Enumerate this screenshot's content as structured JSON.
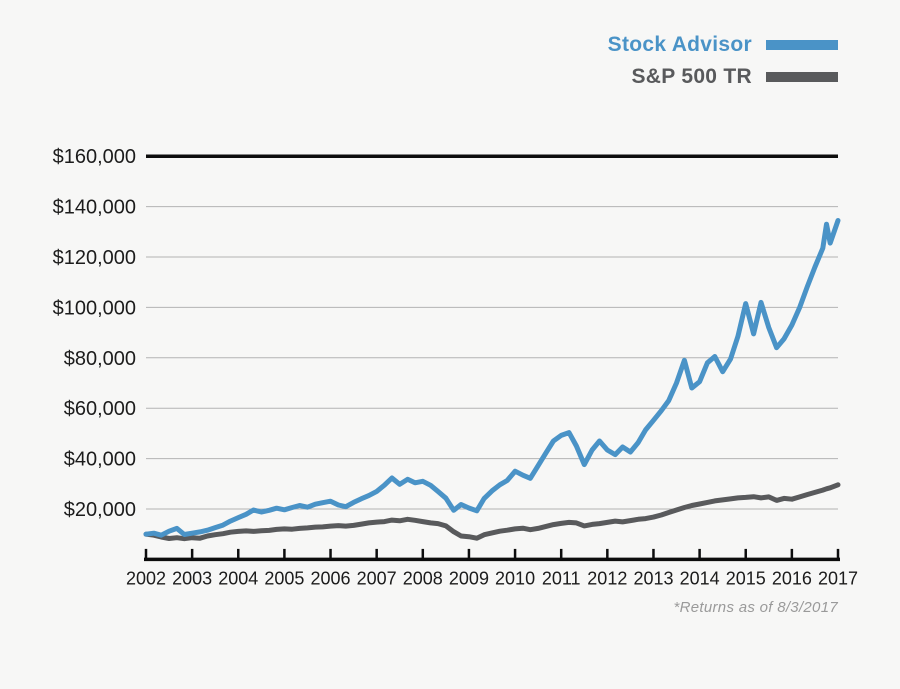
{
  "legend": {
    "items": [
      {
        "label": "Stock Advisor",
        "color": "#4a93c7"
      },
      {
        "label": "S&P 500 TR",
        "color": "#595a5c"
      }
    ]
  },
  "footnote": "*Returns as of 8/3/2017",
  "colors": {
    "background": "#f7f7f6",
    "gridline": "#b3b3b3",
    "axis": "#0d0d0d",
    "tick_label": "#1c1c1c",
    "stock_advisor": "#4a93c7",
    "sp500": "#595a5c"
  },
  "chart_data": {
    "type": "line",
    "title": "",
    "xlabel": "",
    "ylabel": "",
    "grid": true,
    "legend_position": "top-right",
    "xlim": [
      2002,
      2017
    ],
    "ylim": [
      0,
      160000
    ],
    "x_ticks": [
      2002,
      2003,
      2004,
      2005,
      2006,
      2007,
      2008,
      2009,
      2010,
      2011,
      2012,
      2013,
      2014,
      2015,
      2016,
      2017
    ],
    "y_ticks": [
      20000,
      40000,
      60000,
      80000,
      100000,
      120000,
      140000,
      160000
    ],
    "y_tick_labels": [
      "$20,000",
      "$40,000",
      "$60,000",
      "$80,000",
      "$100,000",
      "$120,000",
      "$140,000",
      "$160,000"
    ],
    "x": [
      2002,
      2002.17,
      2002.33,
      2002.5,
      2002.67,
      2002.83,
      2003,
      2003.17,
      2003.33,
      2003.5,
      2003.67,
      2003.83,
      2004,
      2004.17,
      2004.33,
      2004.5,
      2004.67,
      2004.83,
      2005,
      2005.17,
      2005.33,
      2005.5,
      2005.67,
      2005.83,
      2006,
      2006.17,
      2006.33,
      2006.5,
      2006.67,
      2006.83,
      2007,
      2007.17,
      2007.33,
      2007.5,
      2007.67,
      2007.83,
      2008,
      2008.17,
      2008.33,
      2008.5,
      2008.67,
      2008.83,
      2009,
      2009.17,
      2009.33,
      2009.5,
      2009.67,
      2009.83,
      2010,
      2010.17,
      2010.33,
      2010.5,
      2010.67,
      2010.83,
      2011,
      2011.17,
      2011.33,
      2011.5,
      2011.67,
      2011.83,
      2012,
      2012.17,
      2012.33,
      2012.5,
      2012.67,
      2012.83,
      2013,
      2013.17,
      2013.33,
      2013.5,
      2013.67,
      2013.83,
      2014,
      2014.17,
      2014.33,
      2014.5,
      2014.67,
      2014.83,
      2015,
      2015.17,
      2015.33,
      2015.5,
      2015.67,
      2015.83,
      2016,
      2016.17,
      2016.33,
      2016.5,
      2016.67,
      2016.75,
      2016.83,
      2017
    ],
    "series": [
      {
        "name": "Stock Advisor",
        "color": "#4a93c7",
        "values": [
          10000,
          10400,
          9600,
          11200,
          12300,
          9900,
          10400,
          10900,
          11600,
          12600,
          13600,
          15200,
          16600,
          17900,
          19600,
          18800,
          19500,
          20300,
          19700,
          20600,
          21400,
          20700,
          21900,
          22500,
          23100,
          21600,
          20900,
          22600,
          24100,
          25300,
          27000,
          29500,
          32300,
          29800,
          31800,
          30400,
          31000,
          29400,
          27000,
          24300,
          19500,
          21800,
          20400,
          19300,
          24200,
          27200,
          29600,
          31300,
          35000,
          33400,
          32200,
          37200,
          42300,
          47000,
          49200,
          50300,
          45000,
          37600,
          43400,
          47000,
          43400,
          41600,
          44600,
          42600,
          46400,
          51400,
          55200,
          59000,
          63000,
          70000,
          79000,
          68000,
          70500,
          78000,
          80500,
          74500,
          79500,
          88500,
          101500,
          89500,
          102000,
          92000,
          84000,
          87500,
          93000,
          100000,
          108000,
          116000,
          123500,
          133000,
          125500,
          134500
        ]
      },
      {
        "name": "S&P 500 TR",
        "color": "#595a5c",
        "values": [
          10000,
          9600,
          8900,
          8300,
          8600,
          8200,
          8600,
          8400,
          9300,
          9800,
          10200,
          10800,
          11100,
          11300,
          11100,
          11400,
          11500,
          11900,
          12100,
          12000,
          12300,
          12500,
          12800,
          12900,
          13200,
          13400,
          13200,
          13500,
          14000,
          14500,
          14800,
          15000,
          15600,
          15300,
          15900,
          15500,
          15000,
          14500,
          14200,
          13300,
          11000,
          9300,
          9000,
          8400,
          9800,
          10500,
          11200,
          11600,
          12100,
          12400,
          11800,
          12300,
          13100,
          13800,
          14300,
          14700,
          14500,
          13300,
          13900,
          14200,
          14700,
          15200,
          14900,
          15400,
          15900,
          16200,
          16800,
          17600,
          18600,
          19600,
          20600,
          21400,
          22000,
          22600,
          23200,
          23600,
          24000,
          24400,
          24600,
          24900,
          24400,
          24800,
          23400,
          24200,
          23900,
          24800,
          25700,
          26600,
          27500,
          28000,
          28400,
          29600
        ]
      }
    ]
  }
}
